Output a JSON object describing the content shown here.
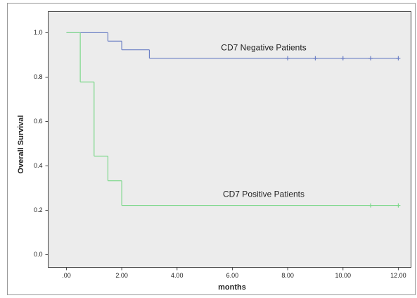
{
  "chart_data": {
    "type": "line",
    "drawstyle": "steps-post",
    "y_label": "Overall Survival",
    "x_label": "months",
    "series": [
      {
        "name": "CD7 Negative Patients",
        "color": "#6a7ec4",
        "x": [
          0,
          1.5,
          2,
          3,
          12
        ],
        "values": [
          1.0,
          0.962,
          0.923,
          0.885,
          0.885
        ],
        "censor_x": [
          8,
          9,
          10,
          11,
          12
        ]
      },
      {
        "name": "CD7 Positive Patients",
        "color": "#7ed88c",
        "x": [
          0,
          0.5,
          1,
          1.5,
          2,
          12
        ],
        "values": [
          1.0,
          0.778,
          0.444,
          0.333,
          0.222,
          0.222
        ],
        "censor_x": [
          11,
          12
        ]
      }
    ],
    "xlim": [
      -0.66,
      12.46
    ],
    "ylim": [
      -0.057,
      1.095
    ],
    "xticks": [
      {
        "value": 0,
        "label": ".00"
      },
      {
        "value": 2,
        "label": "2.00"
      },
      {
        "value": 4,
        "label": "4.00"
      },
      {
        "value": 6,
        "label": "6.00"
      },
      {
        "value": 8,
        "label": "8.00"
      },
      {
        "value": 10,
        "label": "10.00"
      },
      {
        "value": 12,
        "label": "12.00"
      }
    ],
    "yticks": [
      {
        "value": 0,
        "label": "0.0"
      },
      0.2,
      0.4,
      0.6,
      0.8,
      {
        "value": 1,
        "label": "1.0"
      }
    ],
    "grid": false
  }
}
